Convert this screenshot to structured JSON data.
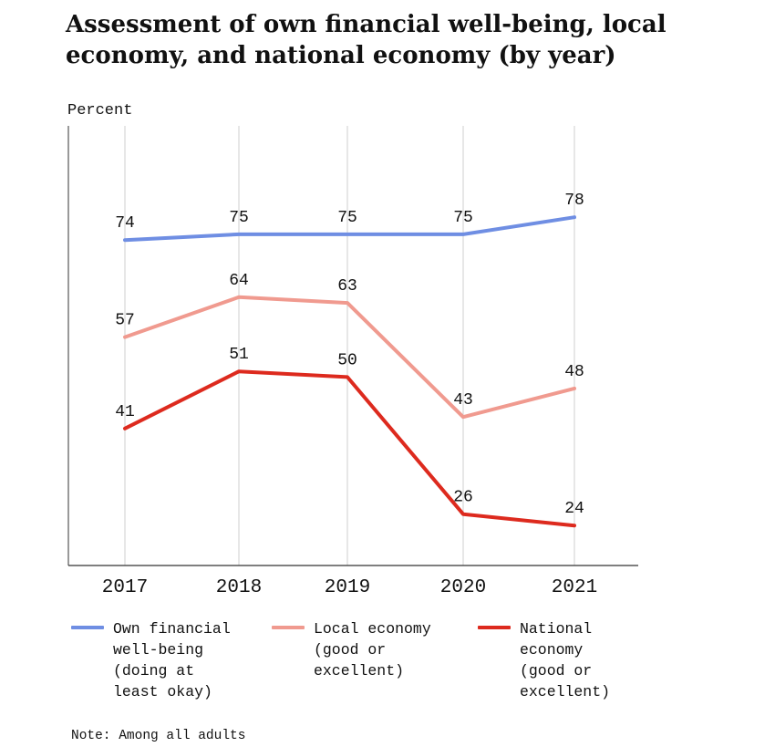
{
  "title": "Assessment of own financial well-being, local economy, and national economy (by year)",
  "note": "Note: Among all adults",
  "chart_data": {
    "type": "line",
    "title": "Assessment of own financial well-being, local economy, and national economy (by year)",
    "ylabel": "Percent",
    "xlabel": "",
    "categories": [
      "2017",
      "2018",
      "2019",
      "2020",
      "2021"
    ],
    "ylim": [
      17,
      94
    ],
    "grid": "vertical lines at each year",
    "legend_position": "bottom",
    "series": [
      {
        "name": "Own financial well-being (doing at least okay)",
        "legend_label": "Own financial\nwell-being\n(doing at\nleast okay)",
        "color": "#6f8ee3",
        "values": [
          74,
          75,
          75,
          75,
          78
        ]
      },
      {
        "name": "Local economy (good or excellent)",
        "legend_label": "Local economy\n(good or\nexcellent)",
        "color": "#f09a8f",
        "values": [
          57,
          64,
          63,
          43,
          48
        ]
      },
      {
        "name": "National economy (good or excellent)",
        "legend_label": "National\neconomy\n(good or\nexcellent)",
        "color": "#dd2a1e",
        "values": [
          41,
          51,
          50,
          26,
          24
        ]
      }
    ]
  }
}
